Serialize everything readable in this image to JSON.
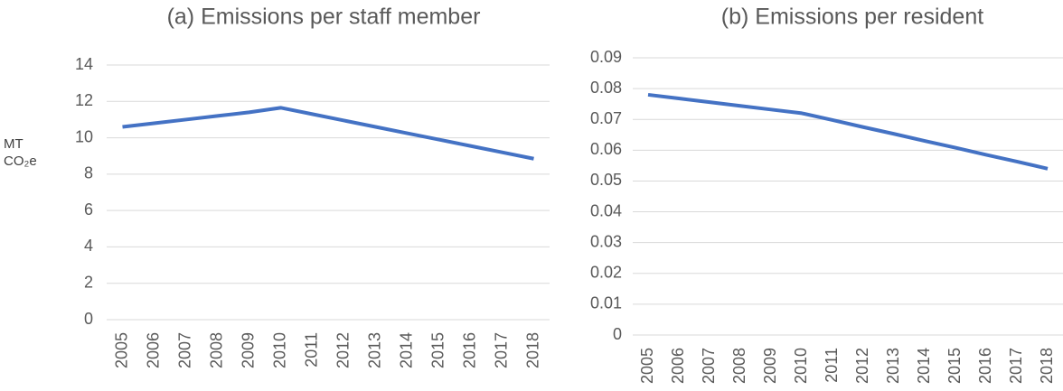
{
  "chart_data": [
    {
      "type": "line",
      "title": "(a) Emissions per staff member",
      "y_label": "MT CO₂e",
      "categories": [
        "2005",
        "2006",
        "2007",
        "2008",
        "2009",
        "2010",
        "2011",
        "2012",
        "2013",
        "2014",
        "2015",
        "2016",
        "2017",
        "2018"
      ],
      "values": [
        10.6,
        10.8,
        11.0,
        11.2,
        11.4,
        11.65,
        11.3,
        10.95,
        10.6,
        10.25,
        9.9,
        9.55,
        9.2,
        8.85
      ],
      "color": "#4472c4",
      "ylim": [
        0,
        14
      ],
      "yticks": [
        0,
        2,
        4,
        6,
        8,
        10,
        12,
        14
      ],
      "grid": true
    },
    {
      "type": "line",
      "title": "(b) Emissions per resident",
      "categories": [
        "2005",
        "2006",
        "2007",
        "2008",
        "2009",
        "2010",
        "2011",
        "2012",
        "2013",
        "2014",
        "2015",
        "2016",
        "2017",
        "2018"
      ],
      "values": [
        0.078,
        0.0768,
        0.0756,
        0.0744,
        0.0732,
        0.072,
        0.0698,
        0.0675,
        0.0653,
        0.063,
        0.0608,
        0.0585,
        0.0563,
        0.054
      ],
      "color": "#4472c4",
      "ylim": [
        0,
        0.09
      ],
      "yticks": [
        0,
        0.01,
        0.02,
        0.03,
        0.04,
        0.05,
        0.06,
        0.07,
        0.08,
        0.09
      ],
      "grid": true
    }
  ]
}
